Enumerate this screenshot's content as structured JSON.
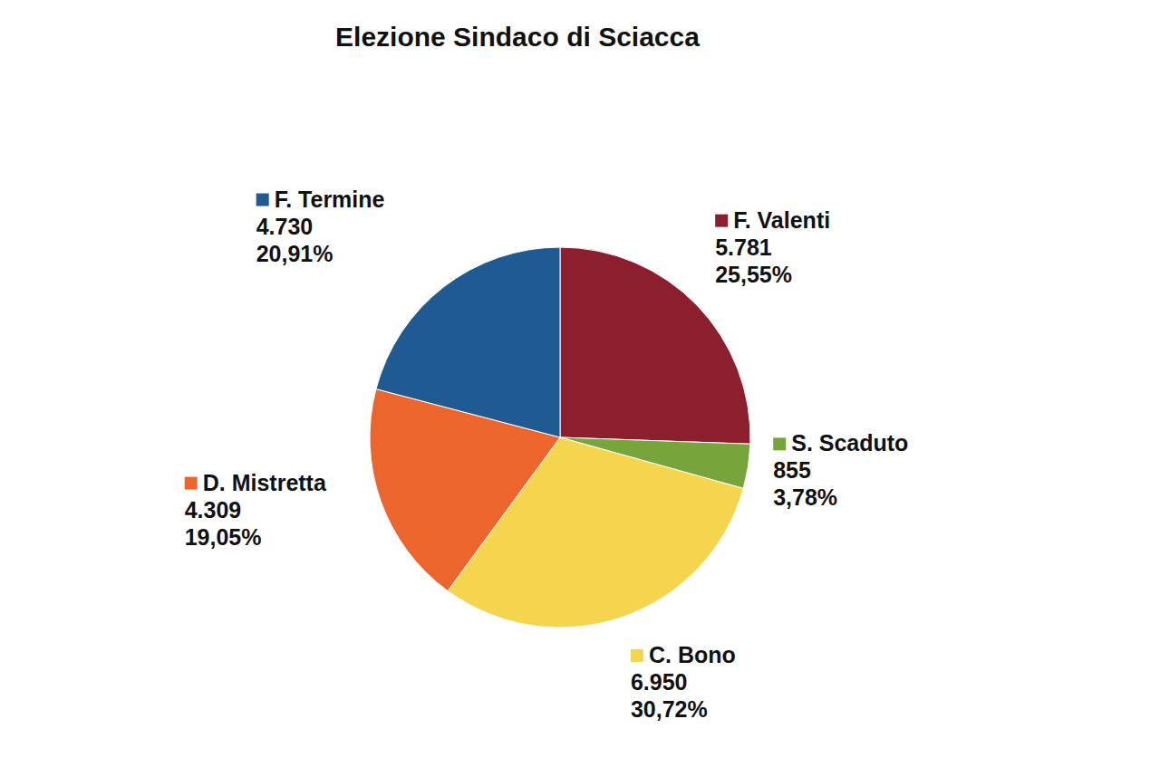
{
  "chart_data": {
    "type": "pie",
    "title": "Elezione Sindaco di Sciacca",
    "categories": [
      "F. Valenti",
      "S. Scaduto",
      "C. Bono",
      "D. Mistretta",
      "F. Termine"
    ],
    "values": [
      5781,
      855,
      6950,
      4309,
      4730
    ],
    "value_labels": [
      "5.781",
      "855",
      "6.950",
      "4.309",
      "4.730"
    ],
    "percentages": [
      25.55,
      3.78,
      30.72,
      19.05,
      20.91
    ],
    "percentage_labels": [
      "25,55%",
      "3,78%",
      "30,72%",
      "19,05%",
      "20,91%"
    ],
    "colors": [
      "#8b1f2e",
      "#77a53b",
      "#f5d44e",
      "#eb652d",
      "#1f5a93"
    ],
    "data_labels": true
  }
}
